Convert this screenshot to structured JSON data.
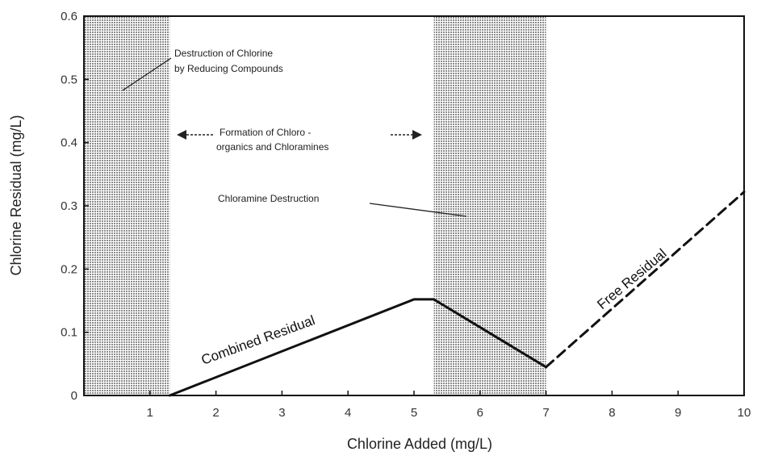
{
  "chart_data": {
    "type": "line",
    "title": "",
    "xlabel": "Chlorine Added (mg/L)",
    "ylabel": "Chlorine Residual (mg/L)",
    "xlim": [
      0,
      10
    ],
    "ylim": [
      0,
      0.6
    ],
    "x_ticks": [
      "1",
      "2",
      "3",
      "4",
      "5",
      "6",
      "7",
      "8",
      "9",
      "10"
    ],
    "y_ticks": [
      "0",
      "0.1",
      "0.2",
      "0.3",
      "0.4",
      "0.5",
      "0.6"
    ],
    "grid": false,
    "shaded_regions": [
      {
        "x_start": 0,
        "x_end": 1.3
      },
      {
        "x_start": 5.3,
        "x_end": 7.0
      }
    ],
    "series": [
      {
        "name": "Combined Residual",
        "style": "solid",
        "x": [
          1.3,
          5.0,
          5.3,
          7.0
        ],
        "y": [
          0.0,
          0.152,
          0.152,
          0.045
        ]
      },
      {
        "name": "Free Residual",
        "style": "dashed",
        "x": [
          7.0,
          10.0
        ],
        "y": [
          0.045,
          0.322
        ]
      }
    ],
    "annotations": {
      "destruction_line1": "Destruction of Chlorine",
      "destruction_line2": "by Reducing Compounds",
      "formation_line1": "Formation of Chloro -",
      "formation_line2": "organics and Chloramines",
      "chloramine_destruction": "Chloramine Destruction"
    },
    "colors": {
      "line": "#111111",
      "shade": "#9a9a9a",
      "axis": "#111111"
    }
  }
}
